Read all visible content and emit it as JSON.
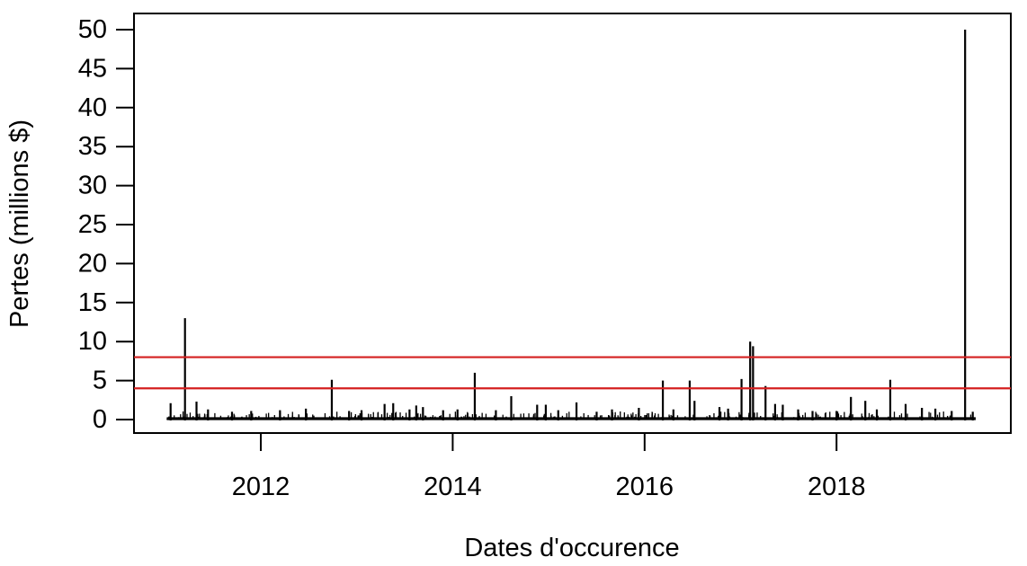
{
  "figure": {
    "background_color": "#ffffff",
    "axis_color": "#000000",
    "series_color": "#000000"
  },
  "chart_data": {
    "type": "bar",
    "style": "thin-vertical-spikes (R plot type='h')",
    "title": "",
    "xlabel": "Dates d'occurence",
    "ylabel": "Pertes (millions $)",
    "x_ticks": [
      2012,
      2014,
      2016,
      2018
    ],
    "y_ticks": [
      0,
      5,
      10,
      15,
      20,
      25,
      30,
      35,
      40,
      45,
      50
    ],
    "xlim": [
      2010.7,
      2019.8
    ],
    "ylim": [
      0,
      52
    ],
    "grid": false,
    "legend": null,
    "data_x_range": [
      2011.02,
      2019.45
    ],
    "threshold_lines": {
      "values": [
        4,
        8
      ],
      "color": "#d42020"
    },
    "major_spikes": [
      {
        "x": 2011.06,
        "y": 2.1
      },
      {
        "x": 2011.21,
        "y": 13.0
      },
      {
        "x": 2011.33,
        "y": 2.3
      },
      {
        "x": 2011.45,
        "y": 1.3
      },
      {
        "x": 2011.7,
        "y": 1.0
      },
      {
        "x": 2011.9,
        "y": 1.1
      },
      {
        "x": 2012.2,
        "y": 1.2
      },
      {
        "x": 2012.47,
        "y": 1.4
      },
      {
        "x": 2012.74,
        "y": 5.1
      },
      {
        "x": 2012.92,
        "y": 1.1
      },
      {
        "x": 2013.05,
        "y": 1.2
      },
      {
        "x": 2013.29,
        "y": 2.0
      },
      {
        "x": 2013.38,
        "y": 2.1
      },
      {
        "x": 2013.55,
        "y": 1.3
      },
      {
        "x": 2013.62,
        "y": 1.8
      },
      {
        "x": 2013.69,
        "y": 1.6
      },
      {
        "x": 2013.9,
        "y": 1.2
      },
      {
        "x": 2014.05,
        "y": 1.3
      },
      {
        "x": 2014.23,
        "y": 6.0
      },
      {
        "x": 2014.45,
        "y": 1.2
      },
      {
        "x": 2014.61,
        "y": 3.0
      },
      {
        "x": 2014.88,
        "y": 1.9
      },
      {
        "x": 2014.97,
        "y": 1.9
      },
      {
        "x": 2015.1,
        "y": 1.2
      },
      {
        "x": 2015.29,
        "y": 2.2
      },
      {
        "x": 2015.5,
        "y": 1.0
      },
      {
        "x": 2015.66,
        "y": 1.3
      },
      {
        "x": 2015.94,
        "y": 1.5
      },
      {
        "x": 2016.19,
        "y": 5.0
      },
      {
        "x": 2016.3,
        "y": 1.3
      },
      {
        "x": 2016.47,
        "y": 5.0
      },
      {
        "x": 2016.52,
        "y": 2.4
      },
      {
        "x": 2016.78,
        "y": 1.6
      },
      {
        "x": 2016.87,
        "y": 1.4
      },
      {
        "x": 2017.01,
        "y": 5.2
      },
      {
        "x": 2017.1,
        "y": 10.0
      },
      {
        "x": 2017.13,
        "y": 9.4
      },
      {
        "x": 2017.26,
        "y": 4.3
      },
      {
        "x": 2017.36,
        "y": 2.0
      },
      {
        "x": 2017.44,
        "y": 1.9
      },
      {
        "x": 2017.6,
        "y": 1.3
      },
      {
        "x": 2017.75,
        "y": 1.1
      },
      {
        "x": 2018.0,
        "y": 1.1
      },
      {
        "x": 2018.15,
        "y": 2.9
      },
      {
        "x": 2018.3,
        "y": 2.4
      },
      {
        "x": 2018.42,
        "y": 1.3
      },
      {
        "x": 2018.56,
        "y": 5.1
      },
      {
        "x": 2018.72,
        "y": 2.0
      },
      {
        "x": 2018.89,
        "y": 1.5
      },
      {
        "x": 2019.03,
        "y": 1.4
      },
      {
        "x": 2019.2,
        "y": 1.1
      },
      {
        "x": 2019.34,
        "y": 50.0
      },
      {
        "x": 2019.42,
        "y": 1.0
      }
    ],
    "baseline_noise": {
      "description": "dense band of small daily losses near zero",
      "count": 780,
      "min_value": 0.05,
      "max_value": 1.05
    }
  }
}
